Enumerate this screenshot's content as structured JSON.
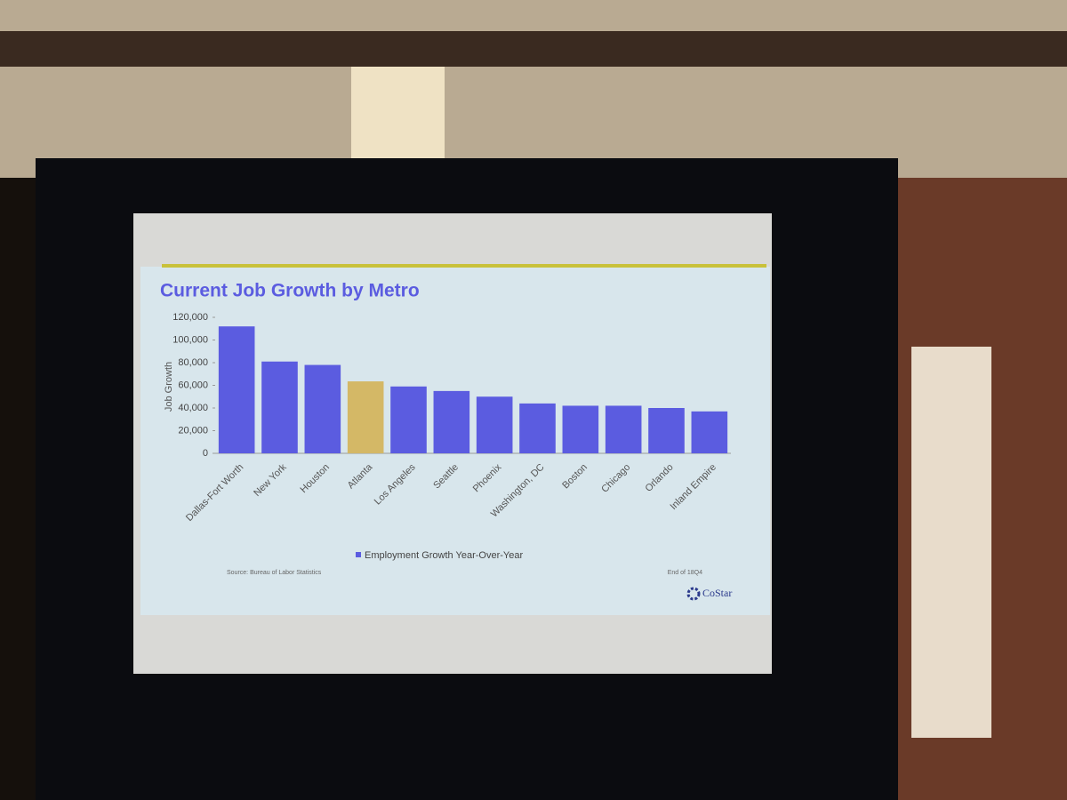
{
  "chart_data": {
    "type": "bar",
    "title": "Current Job Growth by Metro",
    "y_label": "Job Growth",
    "categories": [
      "Dallas-Fort Worth",
      "New York",
      "Houston",
      "Atlanta",
      "Los Angeles",
      "Seattle",
      "Phoenix",
      "Washington, DC",
      "Boston",
      "Chicago",
      "Orlando",
      "Inland Empire"
    ],
    "series": [
      {
        "name": "Employment Growth Year-Over-Year",
        "color": "#5b5ce0",
        "values": [
          112000,
          81000,
          78000,
          63500,
          59000,
          55000,
          50000,
          44000,
          42000,
          42000,
          40000,
          37000
        ]
      }
    ],
    "bar_colors": [
      "#5b5ce0",
      "#5b5ce0",
      "#5b5ce0",
      "#d4b866",
      "#5b5ce0",
      "#5b5ce0",
      "#5b5ce0",
      "#5b5ce0",
      "#5b5ce0",
      "#5b5ce0",
      "#5b5ce0",
      "#5b5ce0"
    ],
    "ylim": [
      0,
      120000
    ],
    "yticks": [
      0,
      {
        "value": 20000,
        "label": "20,000"
      },
      {
        "value": 40000,
        "label": "40,000"
      },
      {
        "value": 60000,
        "label": "60,000"
      },
      {
        "value": 80000,
        "label": "80,000"
      },
      {
        "value": 100000,
        "label": "100,000"
      },
      {
        "value": 120000,
        "label": "120,000"
      }
    ],
    "source": "Source: Bureau of Labor Statistics",
    "note": "End of 18Q4",
    "logo": "CoStar"
  }
}
